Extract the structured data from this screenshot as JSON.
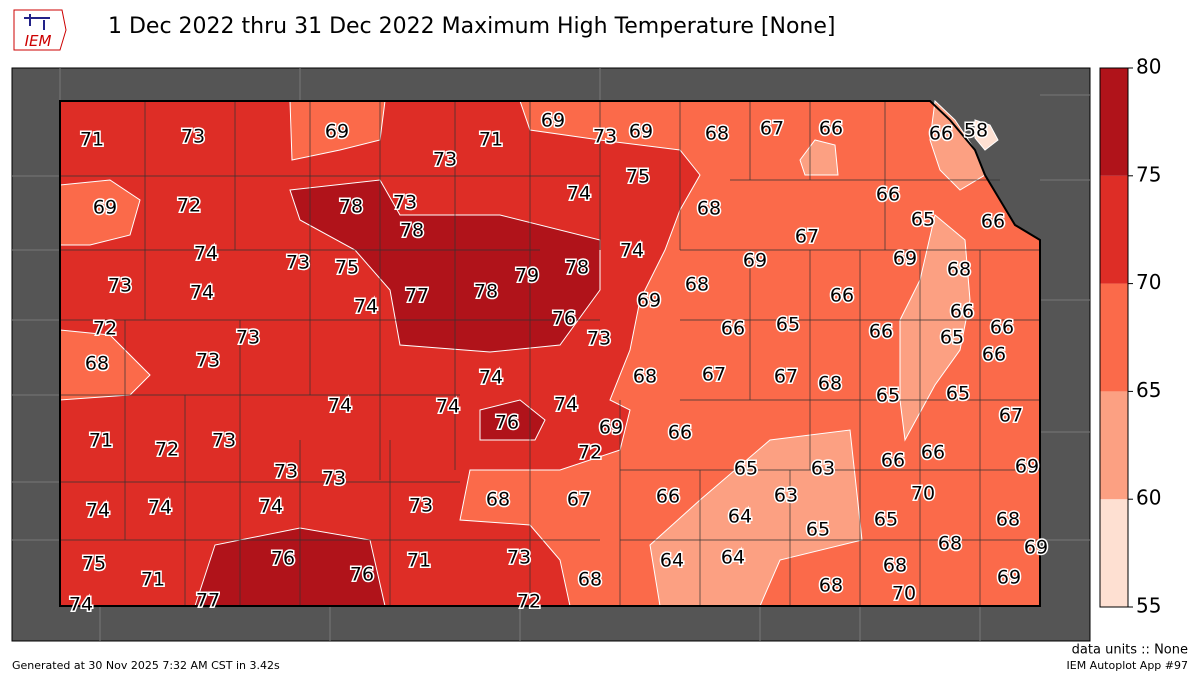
{
  "title": "1 Dec 2022 thru 31 Dec 2022 Maximum High Temperature [None]",
  "logo": "IEM",
  "legend": {
    "ticks": [
      55,
      60,
      65,
      70,
      75,
      80
    ],
    "colors": [
      "#fee0d2",
      "#fca082",
      "#fb6a4a",
      "#de2d26",
      "#b0131a"
    ]
  },
  "stations": [
    71,
    73,
    69,
    73,
    71,
    69,
    73,
    69,
    68,
    67,
    66,
    66,
    58,
    69,
    72,
    78,
    73,
    78,
    74,
    75,
    68,
    66,
    65,
    66,
    74,
    73,
    75,
    79,
    78,
    74,
    67,
    69,
    69,
    68,
    73,
    74,
    77,
    78,
    74,
    69,
    68,
    66,
    66,
    72,
    73,
    76,
    73,
    66,
    65,
    66,
    65,
    66,
    68,
    73,
    74,
    68,
    67,
    67,
    68,
    65,
    65,
    66,
    74,
    74,
    76,
    74,
    69,
    66,
    67,
    71,
    72,
    73,
    72,
    65,
    63,
    66,
    66,
    69,
    73,
    73,
    68,
    67,
    66,
    63,
    70,
    74,
    74,
    74,
    73,
    64,
    65,
    65,
    68,
    75,
    76,
    76,
    71,
    73,
    64,
    64,
    68,
    69,
    71,
    68,
    68,
    68,
    69,
    74,
    77,
    72,
    70
  ],
  "units_note": "data units :: None",
  "generated": "Generated at 30 Nov 2025 7:32 AM CST in 3.42s",
  "app": "IEM Autoplot App #97"
}
